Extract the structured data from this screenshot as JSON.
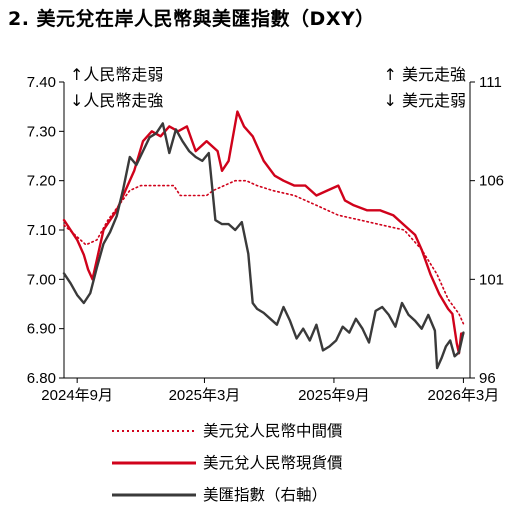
{
  "title": "2. 美元兌在岸人民幣與美匯指數（DXY）",
  "colors": {
    "mid": "#d0021b",
    "spot": "#d0021b",
    "dxy": "#3a3a3a",
    "axis": "#000000"
  },
  "chart_data": {
    "type": "line",
    "title": "2. 美元兌在岸人民幣與美匯指數（DXY）",
    "annotations": {
      "left_up": "↑人民幣走弱",
      "left_down": "↓人民幣走強",
      "right_up": "↑ 美元走強",
      "right_down": "↓ 美元走弱"
    },
    "x_labels": [
      {
        "label": "2024年9月",
        "t": 0.6
      },
      {
        "label": "2025年3月",
        "t": 6.4
      },
      {
        "label": "2025年9月",
        "t": 12.3
      },
      {
        "label": "2026年3月",
        "t": 18.2
      }
    ],
    "x_range": [
      0,
      18.5
    ],
    "y_left": {
      "range": [
        6.8,
        7.4
      ],
      "ticks": [
        "7.40",
        "7.30",
        "7.20",
        "7.10",
        "7.00",
        "6.90",
        "6.80"
      ],
      "tick_values": [
        7.4,
        7.3,
        7.2,
        7.1,
        7.0,
        6.9,
        6.8
      ]
    },
    "y_right": {
      "range": [
        96,
        111
      ],
      "ticks": [
        "111",
        "106",
        "101",
        "96"
      ],
      "tick_values": [
        111,
        106,
        101,
        96
      ]
    },
    "series": [
      {
        "name": "美元兌人民幣中間價",
        "axis": "left",
        "style": "dotted",
        "points": [
          [
            0,
            7.11
          ],
          [
            0.5,
            7.09
          ],
          [
            1,
            7.07
          ],
          [
            1.5,
            7.08
          ],
          [
            2,
            7.12
          ],
          [
            2.5,
            7.15
          ],
          [
            3,
            7.18
          ],
          [
            3.5,
            7.19
          ],
          [
            4,
            7.19
          ],
          [
            4.5,
            7.19
          ],
          [
            5,
            7.19
          ],
          [
            5.3,
            7.17
          ],
          [
            6,
            7.17
          ],
          [
            6.5,
            7.17
          ],
          [
            6.8,
            7.18
          ],
          [
            7.3,
            7.19
          ],
          [
            7.8,
            7.2
          ],
          [
            8.3,
            7.2
          ],
          [
            8.8,
            7.19
          ],
          [
            9.5,
            7.18
          ],
          [
            10.5,
            7.17
          ],
          [
            11.5,
            7.15
          ],
          [
            12.5,
            7.13
          ],
          [
            13.5,
            7.12
          ],
          [
            14.5,
            7.11
          ],
          [
            15.5,
            7.1
          ],
          [
            16.3,
            7.06
          ],
          [
            17,
            7.01
          ],
          [
            17.5,
            6.96
          ],
          [
            18,
            6.93
          ],
          [
            18.2,
            6.91
          ]
        ]
      },
      {
        "name": "美元兌人民幣現貨價",
        "axis": "left",
        "style": "solid",
        "points": [
          [
            0,
            7.12
          ],
          [
            0.3,
            7.1
          ],
          [
            0.6,
            7.08
          ],
          [
            0.9,
            7.05
          ],
          [
            1.1,
            7.02
          ],
          [
            1.3,
            7.0
          ],
          [
            1.5,
            7.04
          ],
          [
            1.8,
            7.1
          ],
          [
            2.1,
            7.12
          ],
          [
            2.4,
            7.14
          ],
          [
            2.8,
            7.18
          ],
          [
            3.2,
            7.22
          ],
          [
            3.6,
            7.28
          ],
          [
            4.0,
            7.3
          ],
          [
            4.4,
            7.29
          ],
          [
            4.8,
            7.31
          ],
          [
            5.2,
            7.3
          ],
          [
            5.6,
            7.31
          ],
          [
            6.0,
            7.26
          ],
          [
            6.5,
            7.28
          ],
          [
            7.0,
            7.26
          ],
          [
            7.2,
            7.22
          ],
          [
            7.5,
            7.24
          ],
          [
            7.9,
            7.34
          ],
          [
            8.2,
            7.31
          ],
          [
            8.6,
            7.29
          ],
          [
            9.1,
            7.24
          ],
          [
            9.6,
            7.21
          ],
          [
            10.0,
            7.2
          ],
          [
            10.5,
            7.19
          ],
          [
            11.0,
            7.19
          ],
          [
            11.5,
            7.17
          ],
          [
            12.0,
            7.18
          ],
          [
            12.5,
            7.19
          ],
          [
            12.8,
            7.16
          ],
          [
            13.2,
            7.15
          ],
          [
            13.8,
            7.14
          ],
          [
            14.4,
            7.14
          ],
          [
            15.0,
            7.13
          ],
          [
            15.5,
            7.11
          ],
          [
            16.0,
            7.09
          ],
          [
            16.3,
            7.06
          ],
          [
            16.7,
            7.01
          ],
          [
            17.1,
            6.97
          ],
          [
            17.5,
            6.94
          ],
          [
            17.7,
            6.93
          ],
          [
            17.9,
            6.87
          ],
          [
            18.0,
            6.85
          ],
          [
            18.1,
            6.89
          ],
          [
            18.2,
            6.89
          ]
        ]
      },
      {
        "name": "美匯指數（右軸）",
        "axis": "right",
        "style": "solid",
        "points": [
          [
            0,
            101.3
          ],
          [
            0.3,
            100.8
          ],
          [
            0.6,
            100.2
          ],
          [
            0.9,
            99.8
          ],
          [
            1.2,
            100.3
          ],
          [
            1.5,
            101.6
          ],
          [
            1.8,
            102.8
          ],
          [
            2.1,
            103.4
          ],
          [
            2.4,
            104.2
          ],
          [
            2.7,
            105.6
          ],
          [
            3.0,
            107.2
          ],
          [
            3.3,
            106.8
          ],
          [
            3.6,
            107.5
          ],
          [
            3.9,
            108.2
          ],
          [
            4.2,
            108.4
          ],
          [
            4.5,
            108.9
          ],
          [
            4.8,
            107.4
          ],
          [
            5.1,
            108.6
          ],
          [
            5.4,
            108.0
          ],
          [
            5.7,
            107.5
          ],
          [
            6.0,
            107.2
          ],
          [
            6.3,
            107.0
          ],
          [
            6.6,
            107.4
          ],
          [
            6.9,
            104.0
          ],
          [
            7.2,
            103.8
          ],
          [
            7.5,
            103.8
          ],
          [
            7.8,
            103.5
          ],
          [
            8.1,
            103.9
          ],
          [
            8.4,
            102.3
          ],
          [
            8.6,
            99.8
          ],
          [
            8.8,
            99.5
          ],
          [
            9.1,
            99.3
          ],
          [
            9.4,
            99.0
          ],
          [
            9.7,
            98.7
          ],
          [
            10.0,
            99.6
          ],
          [
            10.3,
            98.9
          ],
          [
            10.6,
            98.0
          ],
          [
            10.9,
            98.5
          ],
          [
            11.2,
            97.9
          ],
          [
            11.5,
            98.7
          ],
          [
            11.8,
            97.4
          ],
          [
            12.1,
            97.6
          ],
          [
            12.4,
            97.9
          ],
          [
            12.7,
            98.6
          ],
          [
            13.0,
            98.3
          ],
          [
            13.3,
            99.0
          ],
          [
            13.6,
            98.5
          ],
          [
            13.9,
            97.8
          ],
          [
            14.2,
            99.4
          ],
          [
            14.5,
            99.6
          ],
          [
            14.8,
            99.2
          ],
          [
            15.1,
            98.6
          ],
          [
            15.4,
            99.8
          ],
          [
            15.7,
            99.2
          ],
          [
            16.0,
            98.9
          ],
          [
            16.3,
            98.5
          ],
          [
            16.6,
            99.2
          ],
          [
            16.9,
            98.4
          ],
          [
            17.0,
            96.5
          ],
          [
            17.2,
            97.0
          ],
          [
            17.4,
            97.6
          ],
          [
            17.6,
            97.9
          ],
          [
            17.8,
            97.1
          ],
          [
            18.0,
            97.3
          ],
          [
            18.2,
            98.3
          ]
        ]
      }
    ],
    "legend": [
      "美元兌人民幣中間價",
      "美元兌人民幣現貨價",
      "美匯指數（右軸）"
    ],
    "legend_placement": "bottom",
    "grid": false
  }
}
